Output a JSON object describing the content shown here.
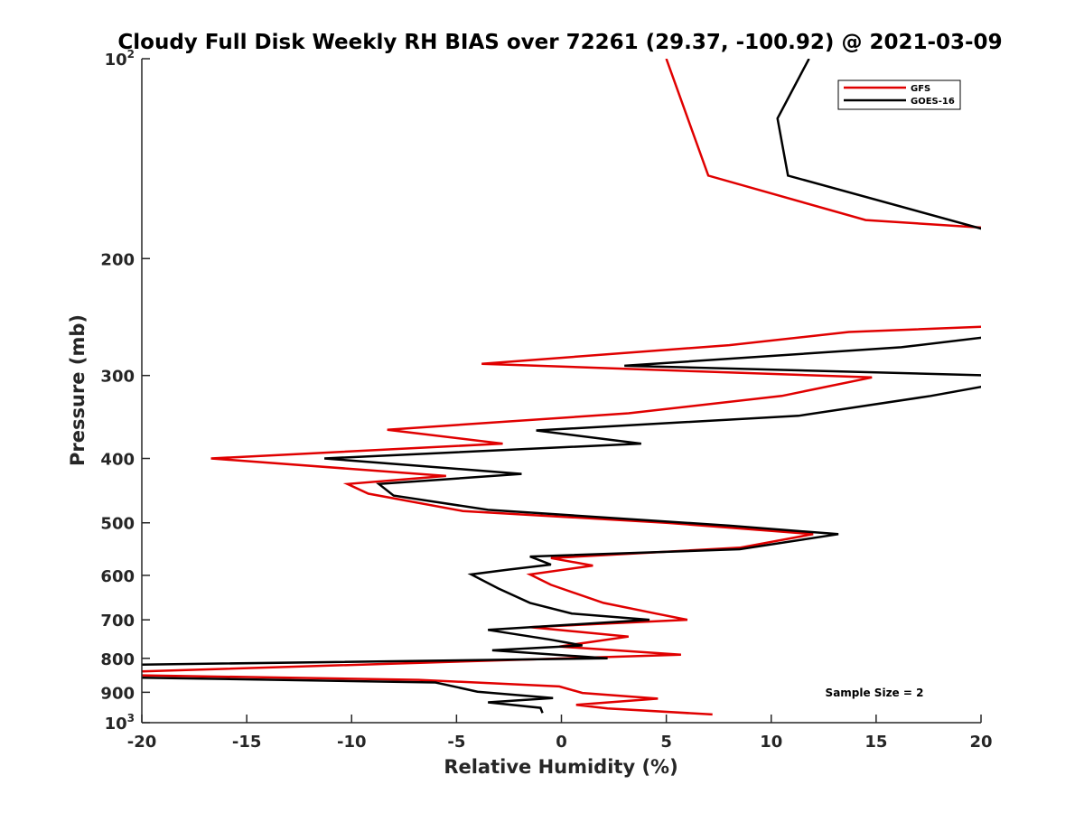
{
  "chart_data": {
    "type": "line",
    "title": "Cloudy Full Disk Weekly RH BIAS over 72261 (29.37, -100.92) @ 2021-03-09",
    "xlabel": "Relative Humidity (%)",
    "ylabel": "Pressure (mb)",
    "xlim": [
      -20,
      20
    ],
    "ylim": [
      100,
      1000
    ],
    "y_scale": "log",
    "y_reversed": true,
    "x_ticks": [
      "-20",
      "-15",
      "-10",
      "-5",
      "0",
      "5",
      "10",
      "15",
      "20"
    ],
    "y_ticks": [
      {
        "value": 100,
        "base": "10",
        "exp": "2"
      },
      {
        "value": 200,
        "label": "200"
      },
      {
        "value": 300,
        "label": "300"
      },
      {
        "value": 400,
        "label": "400"
      },
      {
        "value": 500,
        "label": "500"
      },
      {
        "value": 600,
        "label": "600"
      },
      {
        "value": 700,
        "label": "700"
      },
      {
        "value": 800,
        "label": "800"
      },
      {
        "value": 900,
        "label": "900"
      },
      {
        "value": 1000,
        "base": "10",
        "exp": "3"
      }
    ],
    "grid": false,
    "legend_position": "top-right",
    "series": [
      {
        "name": "GFS",
        "color": "#e00000",
        "points": [
          [
            5.0,
            100
          ],
          [
            7.0,
            150
          ],
          [
            14.5,
            175
          ],
          [
            20.5,
            180
          ],
          [
            20.5,
            253
          ],
          [
            13.7,
            258
          ],
          [
            8.0,
            270
          ],
          [
            -3.8,
            288
          ],
          [
            14.8,
            302
          ],
          [
            10.5,
            322
          ],
          [
            3.2,
            342
          ],
          [
            -8.3,
            362
          ],
          [
            -2.8,
            380
          ],
          [
            -16.7,
            400
          ],
          [
            -5.5,
            425
          ],
          [
            -10.2,
            437
          ],
          [
            -9.2,
            452
          ],
          [
            -4.7,
            480
          ],
          [
            5.0,
            500
          ],
          [
            12.0,
            520
          ],
          [
            8.5,
            545
          ],
          [
            -0.5,
            565
          ],
          [
            1.5,
            580
          ],
          [
            -1.5,
            598
          ],
          [
            -0.5,
            620
          ],
          [
            2.0,
            660
          ],
          [
            4.5,
            685
          ],
          [
            6.0,
            700
          ],
          [
            -1.5,
            718
          ],
          [
            3.2,
            742
          ],
          [
            -0.1,
            768
          ],
          [
            5.7,
            790
          ],
          [
            -20.5,
            838
          ],
          [
            -20.5,
            848
          ],
          [
            -6.8,
            862
          ],
          [
            -0.1,
            882
          ],
          [
            1.0,
            902
          ],
          [
            4.6,
            920
          ],
          [
            0.7,
            940
          ],
          [
            2.2,
            952
          ],
          [
            7.2,
            972
          ]
        ]
      },
      {
        "name": "GOES-16",
        "color": "#000000",
        "points": [
          [
            11.8,
            100
          ],
          [
            10.3,
            123
          ],
          [
            10.8,
            150
          ],
          [
            20.5,
            182
          ],
          [
            20.5,
            262
          ],
          [
            16.2,
            272
          ],
          [
            3.0,
            290
          ],
          [
            20.5,
            300
          ],
          [
            20.5,
            310
          ],
          [
            17.6,
            322
          ],
          [
            11.3,
            345
          ],
          [
            -1.2,
            363
          ],
          [
            3.8,
            380
          ],
          [
            -11.3,
            400
          ],
          [
            -1.9,
            422
          ],
          [
            -8.7,
            437
          ],
          [
            -8.0,
            455
          ],
          [
            -3.5,
            478
          ],
          [
            8.0,
            505
          ],
          [
            13.2,
            520
          ],
          [
            8.5,
            548
          ],
          [
            -1.5,
            562
          ],
          [
            -0.5,
            578
          ],
          [
            -2.5,
            588
          ],
          [
            -4.3,
            598
          ],
          [
            -3.0,
            628
          ],
          [
            -1.5,
            660
          ],
          [
            0.5,
            685
          ],
          [
            4.2,
            700
          ],
          [
            -3.5,
            725
          ],
          [
            -0.5,
            750
          ],
          [
            1.0,
            765
          ],
          [
            -3.3,
            778
          ],
          [
            2.2,
            800
          ],
          [
            -20.5,
            818
          ],
          [
            -20.5,
            855
          ],
          [
            -6.0,
            870
          ],
          [
            -4.0,
            898
          ],
          [
            -0.4,
            918
          ],
          [
            -3.5,
            932
          ],
          [
            -1.0,
            950
          ],
          [
            -0.9,
            967
          ]
        ]
      }
    ],
    "annotations": [
      "Sample Size = 2"
    ]
  }
}
